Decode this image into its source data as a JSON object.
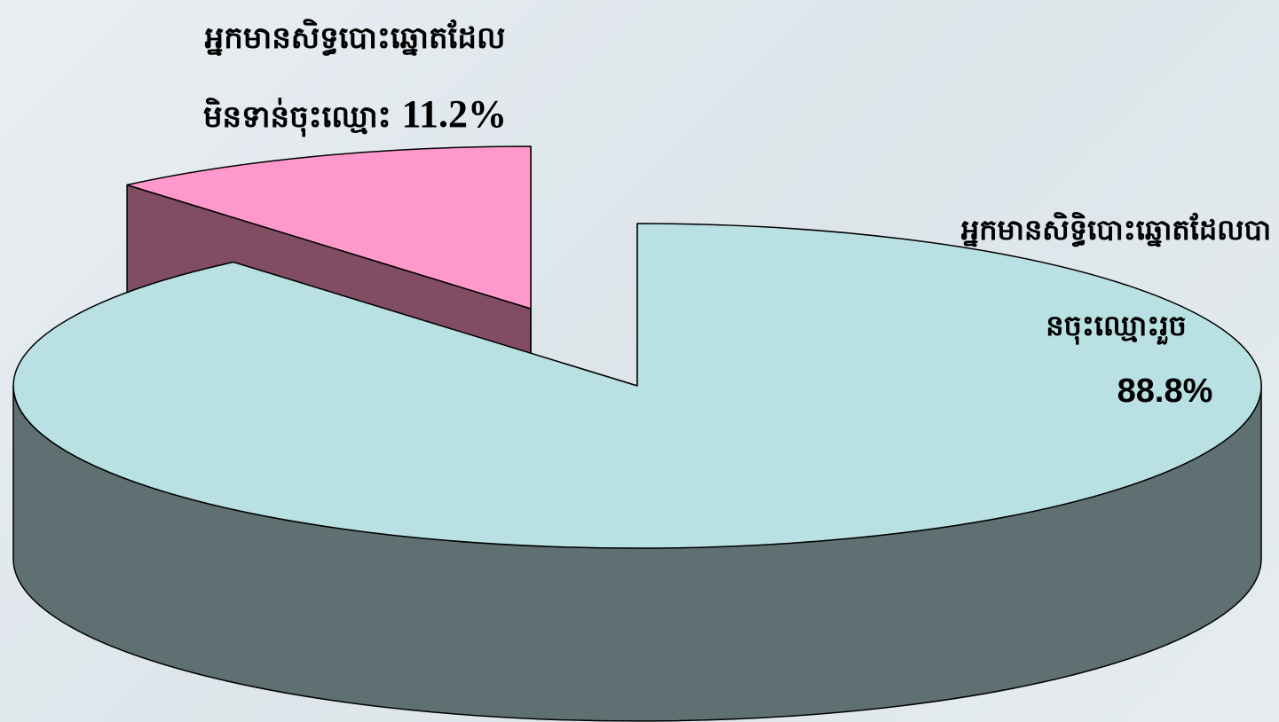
{
  "chart_data": {
    "type": "pie",
    "categories": [
      "អ្នកមានសិទ្ធិបោះឆ្នោតដែលបានចុះឈ្មោះរួច",
      "អ្នកមានសិទ្ធបោះឆ្នោតដែលមិនទាន់ចុះឈ្មោះ"
    ],
    "values": [
      88.8,
      11.2
    ],
    "value_labels": [
      "88.8%",
      "11.2%"
    ],
    "colors": [
      "#b9e0e3",
      "#ff99cc"
    ],
    "side_colors": [
      "#5f7072",
      "#804d62"
    ],
    "explode": [
      false,
      true
    ]
  }
}
